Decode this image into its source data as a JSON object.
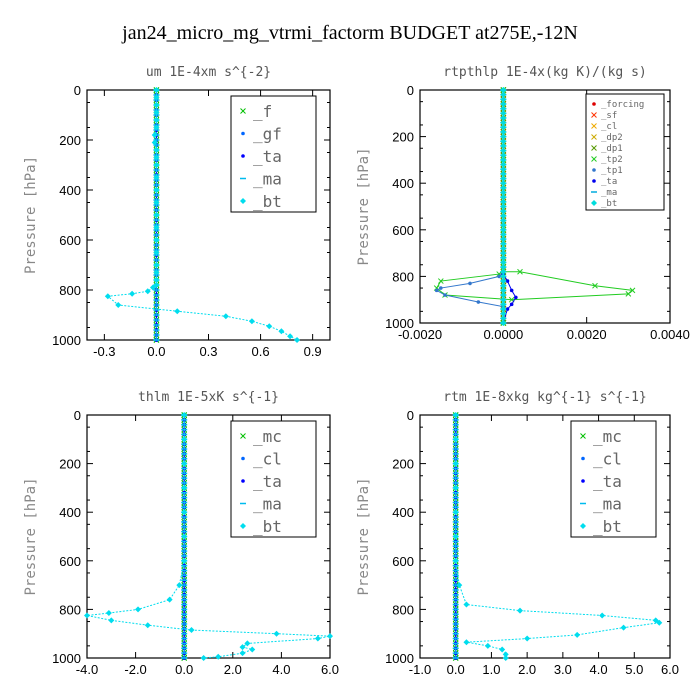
{
  "figure": {
    "title": "jan24_micro_mg_vtrmi_factorm  BUDGET at275E,-12N"
  },
  "chart_data": [
    {
      "type": "line",
      "title": "um  1E-4xm s^{-2}",
      "ylabel": "Pressure [hPa]",
      "xlabel": "",
      "ylim": [
        1000,
        0
      ],
      "xlim": [
        -0.4,
        1.0
      ],
      "xticks": [
        -0.3,
        0.0,
        0.3,
        0.6,
        0.9
      ],
      "xtick_labels": [
        "-0.3",
        "0.0",
        "0.3",
        "0.6",
        "0.9"
      ],
      "yticks": [
        0,
        200,
        400,
        600,
        800,
        1000
      ],
      "ytick_labels": [
        "0",
        "200",
        "400",
        "600",
        "800",
        "1000"
      ],
      "legend": "top-right",
      "legend_size": "large",
      "series": [
        {
          "name": "_f",
          "color": "#00c000",
          "marker": "x",
          "x": [
            0,
            0
          ],
          "y": [
            0,
            1000
          ]
        },
        {
          "name": "_gf",
          "color": "#0066ff",
          "marker": "dot",
          "x": [
            0,
            0
          ],
          "y": [
            0,
            1000
          ]
        },
        {
          "name": "_ta",
          "color": "#0000ff",
          "marker": "dot",
          "x": [
            0,
            0
          ],
          "y": [
            0,
            1000
          ]
        },
        {
          "name": "_ma",
          "color": "#00bbee",
          "marker": "dash",
          "x": [
            0,
            0
          ],
          "y": [
            0,
            1000
          ]
        },
        {
          "name": "_bt",
          "color": "#00ddee",
          "marker": "diamond",
          "x": [
            0,
            0,
            0,
            0,
            0,
            0,
            -0.01,
            -0.01,
            0,
            0,
            0,
            0,
            0,
            0,
            0,
            0,
            0,
            0,
            0,
            0,
            0,
            0,
            -0.02,
            -0.05,
            -0.14,
            -0.28,
            -0.22,
            0.12,
            0.4,
            0.55,
            0.65,
            0.72,
            0.77,
            0.81
          ],
          "y": [
            0,
            30,
            60,
            90,
            120,
            150,
            180,
            210,
            240,
            270,
            300,
            350,
            400,
            450,
            500,
            550,
            600,
            650,
            700,
            730,
            760,
            780,
            790,
            805,
            815,
            825,
            860,
            885,
            905,
            925,
            945,
            965,
            985,
            1000
          ]
        }
      ]
    },
    {
      "type": "line",
      "title": "rtpthlp  1E-4x(kg K)/(kg s)",
      "ylabel": "Pressure [hPa]",
      "xlabel": "",
      "ylim": [
        1000,
        0
      ],
      "xlim": [
        -0.002,
        0.004
      ],
      "xticks": [
        -0.002,
        0.0,
        0.002,
        0.004
      ],
      "xtick_labels": [
        "-0.0020",
        "0.0000",
        "0.0020",
        "0.0040"
      ],
      "yticks": [
        0,
        200,
        400,
        600,
        800,
        1000
      ],
      "ytick_labels": [
        "0",
        "200",
        "400",
        "600",
        "800",
        "1000"
      ],
      "legend": "top-right",
      "legend_size": "small",
      "series": [
        {
          "name": "_forcing",
          "color": "#dd0000",
          "marker": "dot",
          "x": [
            0,
            0
          ],
          "y": [
            0,
            1000
          ]
        },
        {
          "name": "_sf",
          "color": "#ff3300",
          "marker": "x",
          "x": [
            0,
            0
          ],
          "y": [
            0,
            1000
          ]
        },
        {
          "name": "_cl",
          "color": "#eeaa00",
          "marker": "x",
          "x": [
            0,
            0
          ],
          "y": [
            0,
            1000
          ]
        },
        {
          "name": "_dp2",
          "color": "#ccaa00",
          "marker": "x",
          "x": [
            0,
            0
          ],
          "y": [
            0,
            1000
          ]
        },
        {
          "name": "_dp1",
          "color": "#559900",
          "marker": "x",
          "x": [
            0,
            0
          ],
          "y": [
            0,
            1000
          ]
        },
        {
          "name": "_tp2",
          "color": "#22cc22",
          "marker": "x",
          "x": [
            0,
            0,
            0,
            0,
            0,
            -0.0001,
            -0.0015,
            -0.0016,
            -0.0014,
            0.0002,
            0.003,
            0.0031,
            0.0022,
            0.0004,
            0,
            0
          ],
          "y": [
            0,
            300,
            600,
            740,
            770,
            790,
            820,
            850,
            880,
            900,
            875,
            860,
            840,
            780,
            780,
            1000
          ]
        },
        {
          "name": "_tp1",
          "color": "#3377cc",
          "marker": "dot",
          "x": [
            0,
            0,
            0,
            -0.0001,
            -0.0008,
            -0.0015,
            -0.0016,
            -0.0014,
            -0.0006,
            0,
            0
          ],
          "y": [
            0,
            600,
            780,
            800,
            830,
            850,
            860,
            880,
            910,
            930,
            1000
          ]
        },
        {
          "name": "_ta",
          "color": "#0000ee",
          "marker": "dot",
          "x": [
            0,
            0,
            0.0001,
            0.0002,
            0.0003,
            0.0002,
            0.0001,
            0
          ],
          "y": [
            0,
            790,
            820,
            860,
            890,
            920,
            940,
            1000
          ]
        },
        {
          "name": "_ma",
          "color": "#00aadd",
          "marker": "dash",
          "x": [
            0,
            0
          ],
          "y": [
            0,
            1000
          ]
        },
        {
          "name": "_bt",
          "color": "#00dddd",
          "marker": "diamond",
          "x": [
            0,
            0
          ],
          "y": [
            0,
            1000
          ]
        }
      ]
    },
    {
      "type": "line",
      "title": "thlm  1E-5xK s^{-1}",
      "ylabel": "Pressure [hPa]",
      "xlabel": "",
      "ylim": [
        1000,
        0
      ],
      "xlim": [
        -4.0,
        6.0
      ],
      "xticks": [
        -4.0,
        -2.0,
        0.0,
        2.0,
        4.0,
        6.0
      ],
      "xtick_labels": [
        "-4.0",
        "-2.0",
        "0.0",
        "2.0",
        "4.0",
        "6.0"
      ],
      "yticks": [
        0,
        200,
        400,
        600,
        800,
        1000
      ],
      "ytick_labels": [
        "0",
        "200",
        "400",
        "600",
        "800",
        "1000"
      ],
      "legend": "top-right",
      "legend_size": "large",
      "series": [
        {
          "name": "_mc",
          "color": "#00c000",
          "marker": "x",
          "x": [
            0,
            0
          ],
          "y": [
            0,
            1000
          ]
        },
        {
          "name": "_cl",
          "color": "#0066ff",
          "marker": "dot",
          "x": [
            0,
            0
          ],
          "y": [
            0,
            1000
          ]
        },
        {
          "name": "_ta",
          "color": "#0000ff",
          "marker": "dot",
          "x": [
            0,
            0
          ],
          "y": [
            0,
            1000
          ]
        },
        {
          "name": "_ma",
          "color": "#00bbee",
          "marker": "dash",
          "x": [
            0,
            0
          ],
          "y": [
            0,
            1000
          ]
        },
        {
          "name": "_bt",
          "color": "#00ddee",
          "marker": "diamond",
          "x": [
            0,
            0,
            0,
            0,
            0,
            0,
            0,
            -0.2,
            -0.6,
            -1.9,
            -3.1,
            -4.0,
            -3.0,
            -1.5,
            0.3,
            3.8,
            6.0,
            5.5,
            2.6,
            2.4,
            2.8,
            2.4,
            1.4,
            0.8
          ],
          "y": [
            0,
            100,
            200,
            300,
            400,
            500,
            600,
            700,
            760,
            800,
            815,
            825,
            845,
            865,
            885,
            900,
            910,
            920,
            940,
            955,
            965,
            980,
            995,
            1000
          ]
        }
      ]
    },
    {
      "type": "line",
      "title": "rtm  1E-8xkg kg^{-1} s^{-1}",
      "ylabel": "Pressure [hPa]",
      "xlabel": "",
      "ylim": [
        1000,
        0
      ],
      "xlim": [
        -1.0,
        6.0
      ],
      "xticks": [
        -1.0,
        0.0,
        1.0,
        2.0,
        3.0,
        4.0,
        5.0,
        6.0
      ],
      "xtick_labels": [
        "-1.0",
        "0.0",
        "1.0",
        "2.0",
        "3.0",
        "4.0",
        "5.0",
        "6.0"
      ],
      "yticks": [
        0,
        200,
        400,
        600,
        800,
        1000
      ],
      "ytick_labels": [
        "0",
        "200",
        "400",
        "600",
        "800",
        "1000"
      ],
      "legend": "top-right",
      "legend_size": "large",
      "series": [
        {
          "name": "_mc",
          "color": "#00c000",
          "marker": "x",
          "x": [
            0,
            0
          ],
          "y": [
            0,
            1000
          ]
        },
        {
          "name": "_cl",
          "color": "#0066ff",
          "marker": "dot",
          "x": [
            0,
            0
          ],
          "y": [
            0,
            1000
          ]
        },
        {
          "name": "_ta",
          "color": "#0000ff",
          "marker": "dot",
          "x": [
            0,
            0
          ],
          "y": [
            0,
            1000
          ]
        },
        {
          "name": "_ma",
          "color": "#00bbee",
          "marker": "dash",
          "x": [
            0,
            0
          ],
          "y": [
            0,
            1000
          ]
        },
        {
          "name": "_bt",
          "color": "#00ddee",
          "marker": "diamond",
          "x": [
            0,
            0,
            0,
            0,
            0,
            0,
            0,
            0.1,
            0.3,
            1.8,
            4.1,
            5.6,
            5.7,
            4.7,
            3.4,
            2.0,
            0.3,
            0.9,
            1.3,
            1.4,
            1.4
          ],
          "y": [
            0,
            100,
            200,
            300,
            400,
            500,
            600,
            700,
            780,
            805,
            825,
            845,
            855,
            875,
            905,
            920,
            935,
            950,
            965,
            985,
            1000
          ]
        }
      ]
    }
  ]
}
